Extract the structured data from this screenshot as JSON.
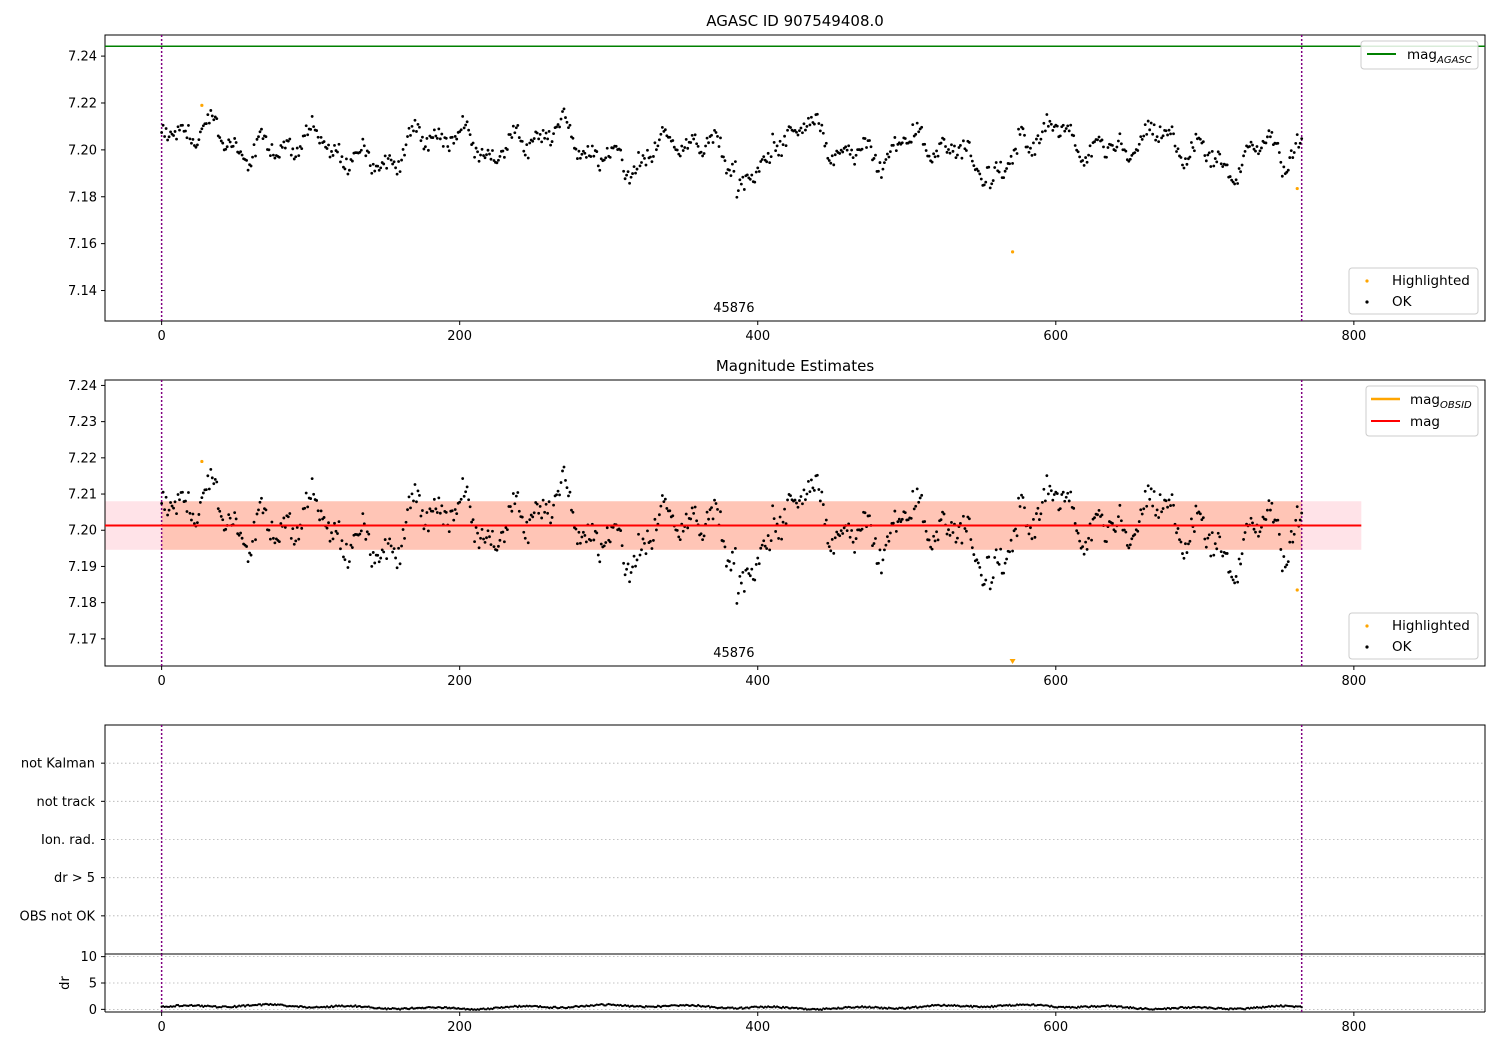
{
  "chart_data": [
    {
      "type": "scatter",
      "title": "AGASC ID 907549408.0",
      "xlim": [
        -38,
        888
      ],
      "ylim": [
        7.127,
        7.249
      ],
      "x_ticks": [
        0,
        200,
        400,
        600,
        800
      ],
      "y_ticks": [
        7.14,
        7.16,
        7.18,
        7.2,
        7.22,
        7.24
      ],
      "y_tick_labels": [
        "7.14",
        "7.16",
        "7.18",
        "7.20",
        "7.22",
        "7.24"
      ],
      "obsid_label": "45876",
      "obsid_label_x": 384,
      "obs_boundaries": [
        0,
        765
      ],
      "hline_value": 7.2442,
      "legend_top": [
        {
          "label": "mag",
          "subscript": "AGASC",
          "color": "#008000",
          "kind": "line"
        }
      ],
      "legend_bottom": [
        {
          "label": "Highlighted",
          "color": "#ffa500",
          "kind": "point"
        },
        {
          "label": "OK",
          "color": "#000000",
          "kind": "point"
        }
      ],
      "highlighted_points": [
        [
          27,
          7.219
        ],
        [
          571,
          7.1565
        ],
        [
          762,
          7.1835
        ]
      ],
      "ok_series": {
        "n": 766,
        "mean": 7.2015,
        "seed": 907549408
      }
    },
    {
      "type": "scatter",
      "title": "Magnitude Estimates",
      "xlim": [
        -38,
        888
      ],
      "ylim": [
        7.1625,
        7.2415
      ],
      "x_ticks": [
        0,
        200,
        400,
        600,
        800
      ],
      "y_ticks": [
        7.17,
        7.18,
        7.19,
        7.2,
        7.21,
        7.22,
        7.23,
        7.24
      ],
      "y_tick_labels": [
        "7.17",
        "7.18",
        "7.19",
        "7.20",
        "7.21",
        "7.22",
        "7.23",
        "7.24"
      ],
      "obsid_label": "45876",
      "obsid_label_x": 384,
      "obs_boundaries": [
        0,
        765
      ],
      "mag_value": 7.2013,
      "mag_band": [
        7.1946,
        7.208
      ],
      "mag_band_x": [
        -38,
        805
      ],
      "obsid_mag_value": 7.2013,
      "obsid_band": [
        7.1946,
        7.208
      ],
      "obsid_band_x": [
        0,
        765
      ],
      "offscale_marker_x": 571,
      "legend_top": [
        {
          "label": "mag",
          "subscript": "OBSID",
          "color": "#ffa500",
          "kind": "line"
        },
        {
          "label": "mag",
          "subscript": "",
          "color": "#ff0000",
          "kind": "line"
        }
      ],
      "legend_bottom": [
        {
          "label": "Highlighted",
          "color": "#ffa500",
          "kind": "point"
        },
        {
          "label": "OK",
          "color": "#000000",
          "kind": "point"
        }
      ],
      "highlighted_points": [
        [
          27,
          7.219
        ],
        [
          762,
          7.1835
        ]
      ]
    },
    {
      "type": "scatter",
      "xlim": [
        -38,
        888
      ],
      "flag_labels": [
        "not Kalman",
        "not track",
        "Ion. rad.",
        "dr > 5",
        "OBS not OK"
      ],
      "obs_boundaries": [
        0,
        765
      ]
    },
    {
      "type": "line",
      "ylabel": "dr",
      "xlim": [
        -38,
        888
      ],
      "ylim": [
        -0.5,
        10.5
      ],
      "x_ticks": [
        0,
        200,
        400,
        600,
        800
      ],
      "y_ticks": [
        0,
        5,
        10
      ],
      "y_tick_labels": [
        "0",
        "5",
        "10"
      ],
      "obs_boundaries": [
        0,
        765
      ],
      "dr_series": {
        "n": 766,
        "mean": 0.45
      }
    }
  ],
  "colors": {
    "ok": "#000000",
    "highlighted": "#ffa500",
    "agasc_line": "#008000",
    "mag_line": "#ff0000",
    "mag_band": "#ffc0cb",
    "obsid_band": "#ffa07a",
    "boundary": "#800080",
    "grid": "#b0b0b0"
  }
}
